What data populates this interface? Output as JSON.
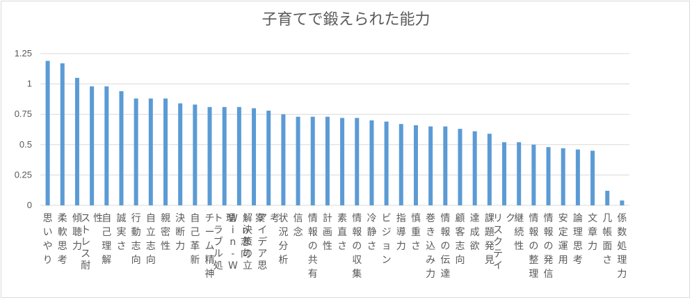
{
  "chart_data": {
    "type": "bar",
    "title": "子育てで鍛えられた能力",
    "categories": [
      "思いやり",
      "柔軟思考",
      "傾聴力",
      "ストレス耐性",
      "自己理解",
      "誠実さ",
      "行動志向",
      "自立志向",
      "親密性",
      "決断力",
      "自己革新",
      "チーム精神",
      "トラブル処理",
      "Win-Win志向",
      "解決策の立案",
      "アイデア思考",
      "状況分析",
      "信念",
      "情報の共有",
      "計画性",
      "素直さ",
      "情報の収集",
      "冷静さ",
      "ビジョン",
      "指導力",
      "慎重さ",
      "巻き込み力",
      "情報の伝達",
      "顧客志向",
      "達成欲",
      "課題発見",
      "リスクテイク",
      "継続性",
      "情報の整理",
      "情報の発信",
      "安定運用",
      "論理思考",
      "文章力",
      "几帳面さ",
      "係数処理力"
    ],
    "values": [
      1.19,
      1.17,
      1.05,
      0.98,
      0.98,
      0.94,
      0.88,
      0.88,
      0.88,
      0.84,
      0.83,
      0.81,
      0.81,
      0.81,
      0.8,
      0.78,
      0.75,
      0.73,
      0.73,
      0.73,
      0.72,
      0.72,
      0.7,
      0.69,
      0.67,
      0.66,
      0.65,
      0.65,
      0.63,
      0.61,
      0.59,
      0.52,
      0.52,
      0.5,
      0.48,
      0.47,
      0.46,
      0.45,
      0.12,
      0.04
    ],
    "ylim": [
      0,
      1.25
    ],
    "yticks": [
      "0",
      "0.25",
      "0.5",
      "0.75",
      "1",
      "1.25"
    ],
    "grid": true,
    "color": "#5b9bd5"
  }
}
